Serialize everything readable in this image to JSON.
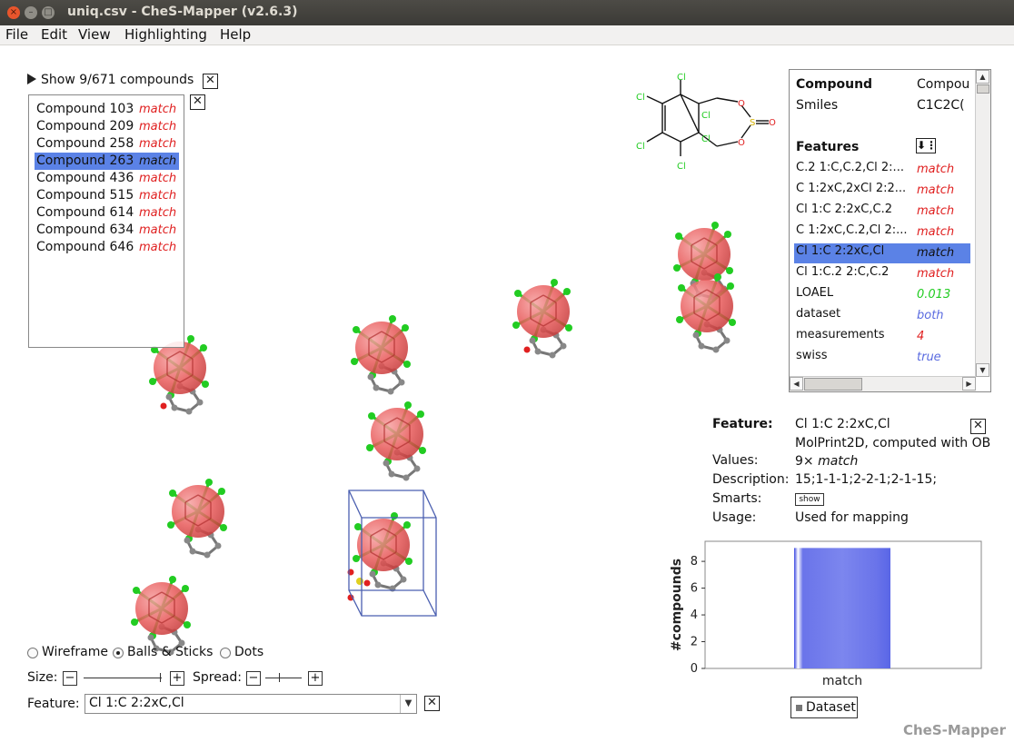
{
  "window": {
    "title": "uniq.csv - CheS-Mapper (v2.6.3)"
  },
  "menu": [
    "File",
    "Edit",
    "View",
    "Highlighting",
    "Help"
  ],
  "compound_list": {
    "header": "Show 9/671 compounds",
    "items": [
      {
        "label": "Compound 103",
        "value": "match"
      },
      {
        "label": "Compound 209",
        "value": "match"
      },
      {
        "label": "Compound 258",
        "value": "match"
      },
      {
        "label": "Compound 263",
        "value": "match",
        "selected": true
      },
      {
        "label": "Compound 436",
        "value": "match"
      },
      {
        "label": "Compound 515",
        "value": "match"
      },
      {
        "label": "Compound 614",
        "value": "match"
      },
      {
        "label": "Compound 634",
        "value": "match"
      },
      {
        "label": "Compound 646",
        "value": "match"
      }
    ]
  },
  "structure_labels": {
    "cl": "Cl",
    "o": "O",
    "s": "S"
  },
  "info_panel": {
    "compound_label": "Compound",
    "compound_value": "Compou",
    "smiles_label": "Smiles",
    "smiles_value": "C1C2C(",
    "features_label": "Features",
    "features": [
      {
        "name": "C.2 1:C,C.2,Cl 2:...",
        "value": "match",
        "color": "#e02020"
      },
      {
        "name": "C 1:2xC,2xCl 2:2...",
        "value": "match",
        "color": "#e02020"
      },
      {
        "name": "Cl 1:C 2:2xC,C.2",
        "value": "match",
        "color": "#e02020"
      },
      {
        "name": "C 1:2xC,C.2,Cl 2:...",
        "value": "match",
        "color": "#e02020"
      },
      {
        "name": "Cl 1:C 2:2xC,Cl",
        "value": "match",
        "color": "#111111",
        "selected": true
      },
      {
        "name": "Cl 1:C.2 2:C,C.2",
        "value": "match",
        "color": "#e02020"
      },
      {
        "name": "LOAEL",
        "value": "0.013",
        "color": "#22cc22"
      },
      {
        "name": "dataset",
        "value": "both",
        "color": "#5a6be0"
      },
      {
        "name": "measurements",
        "value": "4",
        "color": "#e02020"
      },
      {
        "name": "swiss",
        "value": "true",
        "color": "#5a6be0"
      }
    ]
  },
  "feature_detail": {
    "feature_label": "Feature:",
    "feature_value": "Cl 1:C 2:2xC,Cl",
    "source": "MolPrint2D, computed with OB",
    "values_label": "Values:",
    "values_value_prefix": "9× ",
    "values_value_italic": "match",
    "description_label": "Description:",
    "description_value": "15;1-1-1;2-2-1;2-1-15;",
    "smarts_label": "Smarts:",
    "smarts_button": "show",
    "usage_label": "Usage:",
    "usage_value": "Used for mapping"
  },
  "chart_data": {
    "type": "bar",
    "categories": [
      "match"
    ],
    "series": [
      {
        "name": "Dataset",
        "values": [
          9
        ]
      }
    ],
    "ylabel": "#compounds",
    "xlabel": "",
    "ylim": [
      0,
      9.5
    ],
    "yticks": [
      0,
      2,
      4,
      6,
      8
    ],
    "legend": "bottom"
  },
  "controls": {
    "render_modes": [
      "Wireframe",
      "Balls & Sticks",
      "Dots"
    ],
    "render_selected": "Balls & Sticks",
    "size_label": "Size:",
    "spread_label": "Spread:",
    "feature_label": "Feature:",
    "feature_value": "Cl 1:C 2:2xC,Cl"
  },
  "brand": "CheS-Mapper",
  "colors": {
    "selection": "#5b82e6",
    "match": "#e02020",
    "sphere": "#e85a5a",
    "chlorine": "#22cc22",
    "carbon": "#888888"
  }
}
